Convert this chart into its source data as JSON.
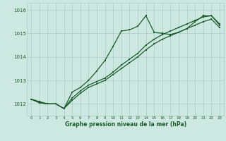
{
  "bg_color": "#cce8e0",
  "grid_color": "#aacccc",
  "line_color": "#1a5c2a",
  "xlabel": "Graphe pression niveau de la mer (hPa)",
  "xlim": [
    -0.5,
    23.5
  ],
  "ylim": [
    1011.5,
    1016.3
  ],
  "yticks": [
    1012,
    1013,
    1014,
    1015,
    1016
  ],
  "xticks": [
    0,
    1,
    2,
    3,
    4,
    5,
    6,
    7,
    8,
    9,
    10,
    11,
    12,
    13,
    14,
    15,
    16,
    17,
    18,
    19,
    20,
    21,
    22,
    23
  ],
  "line1_x": [
    0,
    1,
    2,
    3,
    4,
    5,
    6,
    7,
    8,
    9,
    10,
    11,
    12,
    13,
    14,
    15,
    16,
    17,
    18,
    19,
    20,
    21,
    22,
    23
  ],
  "line1_y": [
    1012.2,
    1012.1,
    1012.0,
    1012.0,
    1011.8,
    1012.5,
    1012.7,
    1013.0,
    1013.4,
    1013.85,
    1014.45,
    1015.1,
    1015.15,
    1015.3,
    1015.75,
    1015.05,
    1015.0,
    1014.95,
    1015.05,
    1015.2,
    1015.5,
    1015.75,
    1015.75,
    1015.4
  ],
  "line2_x": [
    0,
    1,
    2,
    3,
    4,
    5,
    6,
    7,
    8,
    9,
    10,
    11,
    12,
    13,
    14,
    15,
    16,
    17,
    18,
    19,
    20,
    21,
    22,
    23
  ],
  "line2_y": [
    1012.2,
    1012.05,
    1012.0,
    1012.0,
    1011.8,
    1012.25,
    1012.55,
    1012.8,
    1012.95,
    1013.1,
    1013.35,
    1013.65,
    1013.9,
    1014.15,
    1014.5,
    1014.75,
    1014.95,
    1015.1,
    1015.25,
    1015.4,
    1015.55,
    1015.7,
    1015.75,
    1015.35
  ],
  "line3_x": [
    0,
    1,
    2,
    3,
    4,
    5,
    6,
    7,
    8,
    9,
    10,
    11,
    12,
    13,
    14,
    15,
    16,
    17,
    18,
    19,
    20,
    21,
    22,
    23
  ],
  "line3_y": [
    1012.2,
    1012.05,
    1012.0,
    1012.0,
    1011.8,
    1012.15,
    1012.45,
    1012.7,
    1012.85,
    1013.0,
    1013.25,
    1013.5,
    1013.75,
    1014.0,
    1014.3,
    1014.55,
    1014.75,
    1014.9,
    1015.05,
    1015.2,
    1015.35,
    1015.5,
    1015.6,
    1015.25
  ]
}
